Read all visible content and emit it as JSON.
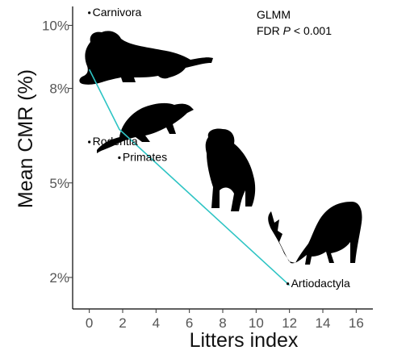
{
  "chart_data": {
    "type": "line",
    "xlabel": "Litters index",
    "ylabel": "Mean CMR (%)",
    "xlim": [
      -1,
      17
    ],
    "ylim": [
      1,
      10.6
    ],
    "xticks": [
      0,
      2,
      4,
      6,
      8,
      10,
      12,
      14,
      16
    ],
    "xtick_labels": [
      "0",
      "2",
      "4",
      "6",
      "8",
      "10",
      "12",
      "14",
      "16"
    ],
    "yticks": [
      2,
      5,
      8,
      10
    ],
    "ytick_labels": [
      "2%",
      "5%",
      "8%",
      "10%"
    ],
    "grid": false,
    "series": [
      {
        "x": [
          0,
          1.8,
          12
        ],
        "y": [
          8.6,
          6.7,
          1.75
        ],
        "color": "#2ec4c4"
      }
    ],
    "points": [
      {
        "label": "Carnivora",
        "x": 0,
        "y": 10.4
      },
      {
        "label": "Rodentia",
        "x": 0,
        "y": 6.3
      },
      {
        "label": "Primates",
        "x": 1.8,
        "y": 5.8
      },
      {
        "label": "Artiodactyla",
        "x": 11.9,
        "y": 1.8
      }
    ],
    "annotation_lines": [
      "GLMM",
      "FDR ",
      "P",
      " < 0.001"
    ],
    "silhouettes": [
      "tiger-icon",
      "rat-icon",
      "chimpanzee-icon",
      "deer-icon"
    ]
  }
}
